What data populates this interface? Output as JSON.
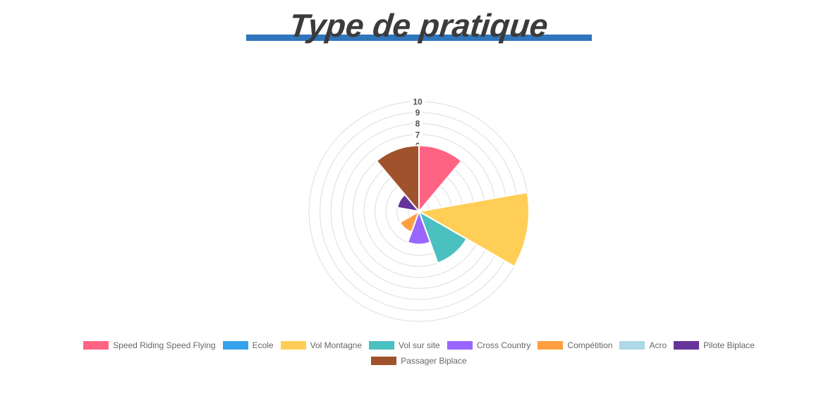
{
  "title": "Type de pratique",
  "styles": {
    "background": "#FFFFFF",
    "accent_bar_color": "#2F76BC",
    "title_color": "#3B3B3B",
    "grid_color": "#DDDDDD",
    "tick_color": "#545454",
    "tick_backdrop_color": "#FFFFFF",
    "sector_border_color": "#FFFFFF",
    "legend_text_color": "#666666"
  },
  "chart_data": {
    "type": "polarArea",
    "title": "Type de pratique",
    "categories": [
      "Speed Riding Speed Flying",
      "Ecole",
      "Vol Montagne",
      "Vol sur site",
      "Cross Country",
      "Compétition",
      "Acro",
      "Pilote Biplace",
      "Passager Biplace"
    ],
    "values": [
      6,
      0,
      10,
      5,
      3,
      2,
      0,
      2,
      6
    ],
    "colors": [
      "#FF6384",
      "#36A2EB",
      "#FFCE56",
      "#4BC0C0",
      "#9966FF",
      "#FF9F40",
      "#ADD8E6",
      "#663399",
      "#A0522D"
    ],
    "scale": {
      "min": 0,
      "max": 10,
      "step": 1,
      "visible_tick_labels": [
        "6",
        "7",
        "8",
        "9",
        "10"
      ]
    },
    "start_angle_deg": 0,
    "direction": "clockwise",
    "grid": true,
    "angle_lines": false,
    "legend_position": "bottom",
    "legend_rows": [
      8,
      1
    ]
  }
}
